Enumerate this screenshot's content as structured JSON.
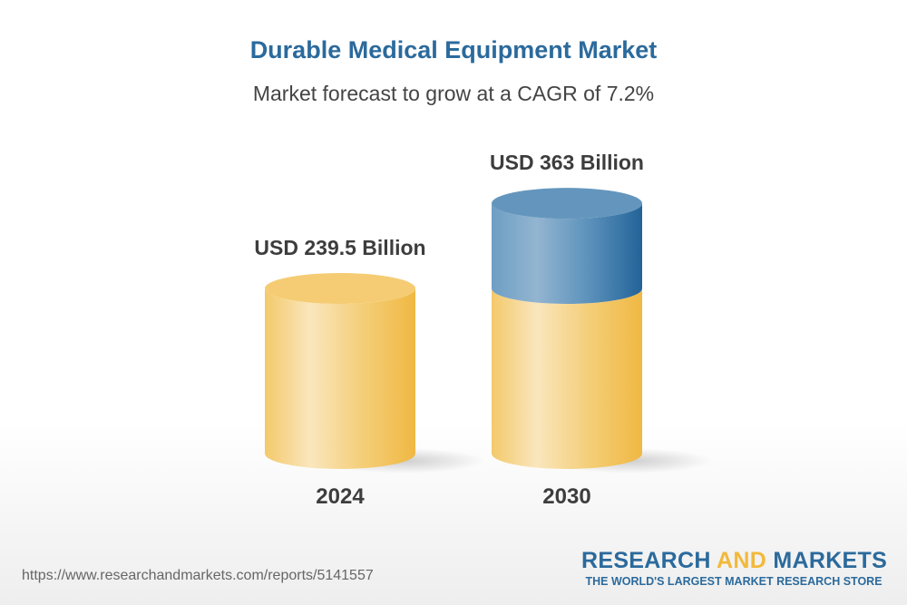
{
  "chart_data": {
    "type": "bar",
    "style": "3d-cylinder",
    "title": "Durable Medical Equipment Market",
    "subtitle": "Market forecast to grow at a CAGR of 7.2%",
    "categories": [
      "2024",
      "2030"
    ],
    "values": [
      239.5,
      363
    ],
    "value_labels": [
      "USD 239.5 Billion",
      "USD 363 Billion"
    ],
    "unit": "USD Billion",
    "grid": false,
    "colors": {
      "base": "#f2c35a",
      "growth": "#2b6a9c",
      "title": "#2b6a9c"
    }
  },
  "footer": {
    "url": "https://www.researchandmarkets.com/reports/5141557",
    "logo_word1": "RESEARCH",
    "logo_word2": "AND",
    "logo_word3": "MARKETS",
    "logo_tagline": "THE WORLD'S LARGEST MARKET RESEARCH STORE"
  }
}
